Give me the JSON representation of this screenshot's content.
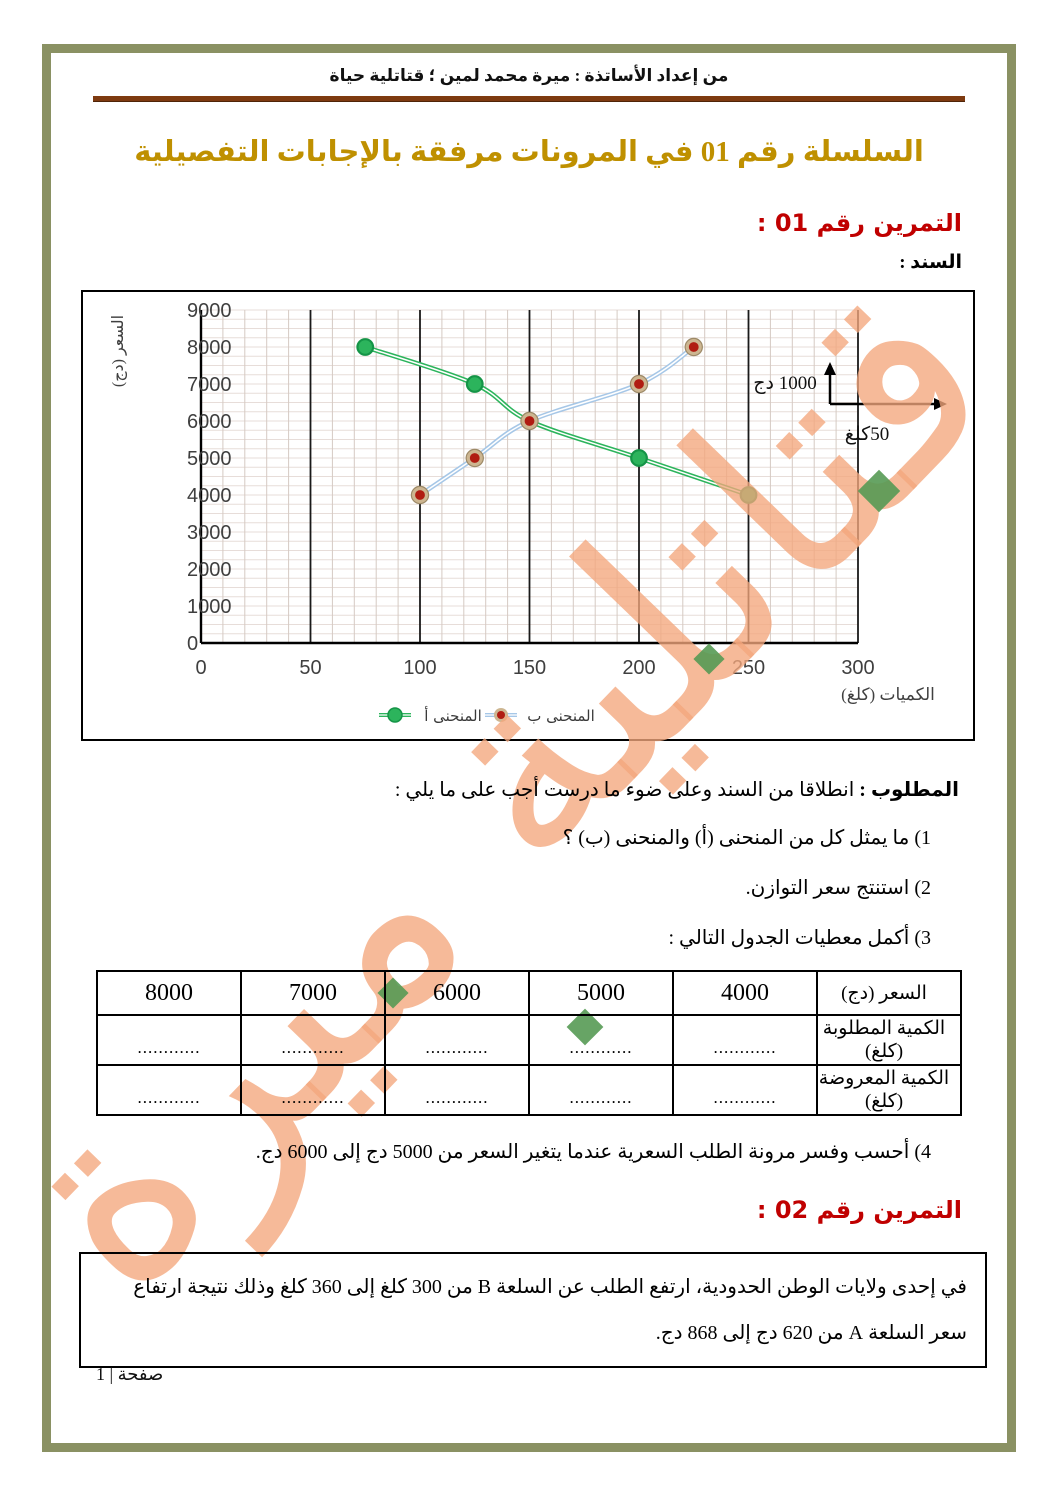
{
  "page": {
    "header": "من إعداد الأساتذة : ميرة محمد لمين ؛ قتاتلية حياة",
    "title": "السلسلة رقم 01 في المرونات مرفقة بالإجابات التفصيلية",
    "footer": "صفحة | 1",
    "watermark": "قتاتلية ميرة"
  },
  "exercise1": {
    "heading": "التمرين رقم 01 :",
    "support_label": "السند :",
    "required_label": "المطلوب :",
    "required_text": "انطلاقا من السند وعلى ضوء ما درست أجب على ما يلي :",
    "questions": [
      "1) ما يمثل كل من المنحنى (أ) والمنحنى (ب) ؟",
      "2) استنتج سعر التوازن.",
      "3) أكمل معطيات الجدول التالي :",
      "4) أحسب وفسر مرونة الطلب السعرية عندما يتغير السعر من 5000 دج إلى 6000 دج."
    ],
    "table": {
      "header_label": "السعر (دج)",
      "header_values": [
        "4000",
        "5000",
        "6000",
        "7000",
        "8000"
      ],
      "rows": [
        {
          "label": "الكمية المطلوبة (كلغ)",
          "cells": [
            "............",
            "............",
            "............",
            "............",
            "............"
          ]
        },
        {
          "label": "الكمية المعروضة (كلغ)",
          "cells": [
            "............",
            "............",
            "............",
            "............",
            "............"
          ]
        }
      ]
    }
  },
  "exercise2": {
    "heading": "التمرين رقم 02 :",
    "text": "في إحدى ولايات الوطن الحدودية، ارتفع الطلب عن السلعة B من 300 كلغ إلى 360 كلغ وذلك نتيجة ارتفاع سعر السلعة A من 620 دج إلى 868 دج."
  },
  "chart_data": {
    "type": "line",
    "title": "",
    "xlabel": "الكميات (كلغ)",
    "ylabel": "السعر (دج)",
    "xlim": [
      0,
      300
    ],
    "ylim": [
      0,
      9000
    ],
    "xtick_step": 50,
    "ytick_step": 1000,
    "x_minor_step": 10,
    "y_minor_step": 250,
    "grid": true,
    "legend_position": "bottom",
    "series": [
      {
        "name": "المنحنى أ",
        "x": [
          75,
          125,
          150,
          200,
          250
        ],
        "y": [
          8000,
          7000,
          6000,
          5000,
          4000
        ],
        "line_color": "#2cb45c",
        "marker_style": "solid",
        "marker_fill": "#2cb45c",
        "marker_edge": "#159447"
      },
      {
        "name": "المنحنى ب",
        "x": [
          100,
          125,
          150,
          200,
          225
        ],
        "y": [
          4000,
          5000,
          6000,
          7000,
          8000
        ],
        "line_color": "#a6c7e7",
        "marker_style": "ring",
        "marker_fill": "#b01c12",
        "marker_edge": "#9d8a68",
        "marker_ring": "#cdb691"
      }
    ],
    "scale_note": {
      "y_unit": "1000 دج",
      "x_unit": "50كلغ"
    }
  },
  "colors": {
    "accent_red": "#c00000",
    "title_gold": "#bf9000",
    "frame_olive": "#8a9163",
    "rule_brown": "#7e3a10",
    "watermark_peach": "#f3a77c",
    "grid_minor": "#d5cac3",
    "grid_major": "#1a1a1a"
  }
}
